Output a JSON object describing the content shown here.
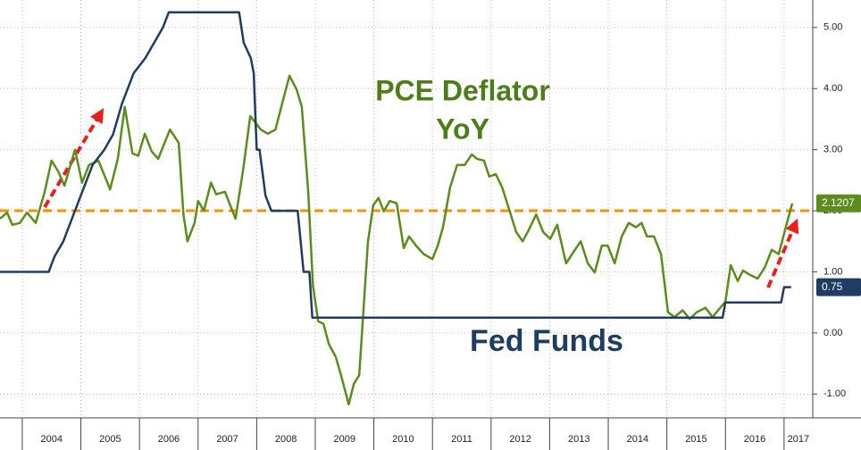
{
  "chart_data": {
    "type": "line",
    "annotations": [
      "PCE Deflator",
      "YoY",
      "Fed Funds"
    ],
    "xlim": [
      2003.62,
      2017.49
    ],
    "xticks": [
      2004,
      2005,
      2006,
      2007,
      2008,
      2009,
      2010,
      2011,
      2012,
      2013,
      2014,
      2015,
      2016,
      2017
    ],
    "ylim": [
      -1.39,
      5.45
    ],
    "yticks": [
      {
        "value": -1,
        "label": "-1.00"
      },
      {
        "value": 0,
        "label": "0.00"
      },
      {
        "value": 1,
        "label": "1.00"
      },
      {
        "value": 2,
        "label": "2.00"
      },
      {
        "value": 3,
        "label": "3.00"
      },
      {
        "value": 4,
        "label": "4.00"
      },
      {
        "value": 5,
        "label": "5.00"
      }
    ],
    "grid": true,
    "reference_line": {
      "value": 2,
      "color": "#ff8c00"
    },
    "series": [
      {
        "name": "PCE Deflator YoY",
        "color": "#5b8c1c",
        "x": [
          2003.62,
          2003.74,
          2003.83,
          2003.96,
          2004.08,
          2004.23,
          2004.38,
          2004.5,
          2004.61,
          2004.72,
          2004.9,
          2005.02,
          2005.14,
          2005.3,
          2005.5,
          2005.63,
          2005.75,
          2005.88,
          2005.98,
          2006.09,
          2006.21,
          2006.32,
          2006.52,
          2006.67,
          2006.75,
          2006.82,
          2006.94,
          2007.0,
          2007.1,
          2007.22,
          2007.31,
          2007.46,
          2007.64,
          2007.77,
          2007.89,
          2008.07,
          2008.19,
          2008.32,
          2008.44,
          2008.56,
          2008.68,
          2008.77,
          2008.88,
          2008.96,
          2009.05,
          2009.14,
          2009.23,
          2009.35,
          2009.44,
          2009.57,
          2009.66,
          2009.75,
          2009.9,
          2009.99,
          2010.08,
          2010.17,
          2010.27,
          2010.39,
          2010.51,
          2010.6,
          2010.72,
          2010.85,
          2011.0,
          2011.09,
          2011.18,
          2011.3,
          2011.42,
          2011.55,
          2011.67,
          2011.76,
          2011.88,
          2011.97,
          2012.08,
          2012.19,
          2012.31,
          2012.43,
          2012.54,
          2012.64,
          2012.77,
          2012.89,
          2013.01,
          2013.13,
          2013.28,
          2013.41,
          2013.53,
          2013.65,
          2013.77,
          2013.89,
          2013.99,
          2014.11,
          2014.23,
          2014.35,
          2014.47,
          2014.57,
          2014.66,
          2014.78,
          2014.9,
          2015.02,
          2015.13,
          2015.27,
          2015.39,
          2015.51,
          2015.66,
          2015.78,
          2015.91,
          2016.0,
          2016.09,
          2016.21,
          2016.3,
          2016.42,
          2016.55,
          2016.67,
          2016.79,
          2016.91,
          2017.03,
          2017.14
        ],
        "values": [
          1.87,
          1.97,
          1.77,
          1.8,
          1.97,
          1.8,
          2.3,
          2.82,
          2.65,
          2.41,
          3.0,
          2.46,
          2.75,
          2.82,
          2.35,
          2.85,
          3.7,
          2.94,
          2.9,
          3.26,
          2.97,
          2.85,
          3.33,
          3.11,
          1.94,
          1.5,
          1.8,
          2.16,
          2.0,
          2.46,
          2.27,
          2.31,
          1.87,
          2.68,
          3.55,
          3.33,
          3.26,
          3.33,
          3.77,
          4.21,
          3.99,
          3.7,
          2.31,
          0.77,
          0.19,
          0.15,
          -0.18,
          -0.39,
          -0.69,
          -1.17,
          -0.83,
          -0.69,
          1.5,
          2.09,
          2.21,
          1.99,
          2.16,
          2.12,
          1.39,
          1.58,
          1.43,
          1.29,
          1.21,
          1.43,
          1.73,
          2.38,
          2.75,
          2.75,
          2.92,
          2.85,
          2.82,
          2.56,
          2.6,
          2.38,
          2.02,
          1.65,
          1.5,
          1.68,
          1.94,
          1.65,
          1.54,
          1.77,
          1.14,
          1.33,
          1.5,
          1.14,
          0.99,
          1.43,
          1.43,
          1.14,
          1.58,
          1.8,
          1.73,
          1.8,
          1.58,
          1.58,
          1.29,
          0.34,
          0.26,
          0.37,
          0.23,
          0.34,
          0.41,
          0.26,
          0.41,
          0.51,
          1.11,
          0.85,
          1.02,
          0.95,
          0.89,
          1.07,
          1.36,
          1.29,
          1.73,
          2.1207
        ]
      },
      {
        "name": "Fed Funds",
        "color": "#1f3d63",
        "x": [
          2003.62,
          2004.45,
          2004.55,
          2004.7,
          2004.8,
          2005.0,
          2005.2,
          2005.4,
          2005.55,
          2005.7,
          2005.9,
          2006.1,
          2006.25,
          2006.4,
          2006.5,
          2007.7,
          2007.78,
          2007.9,
          2007.95,
          2008.0,
          2008.05,
          2008.15,
          2008.25,
          2008.7,
          2008.8,
          2008.9,
          2008.95,
          2015.95,
          2016.0,
          2016.95,
          2017.0,
          2017.12
        ],
        "values": [
          1.0,
          1.0,
          1.25,
          1.5,
          1.75,
          2.25,
          2.75,
          3.0,
          3.25,
          3.75,
          4.25,
          4.5,
          4.75,
          5.0,
          5.25,
          5.25,
          4.75,
          4.5,
          4.25,
          3.0,
          3.0,
          2.25,
          2.0,
          2.0,
          1.0,
          1.0,
          0.25,
          0.25,
          0.5,
          0.5,
          0.75,
          0.75
        ]
      }
    ]
  }
}
